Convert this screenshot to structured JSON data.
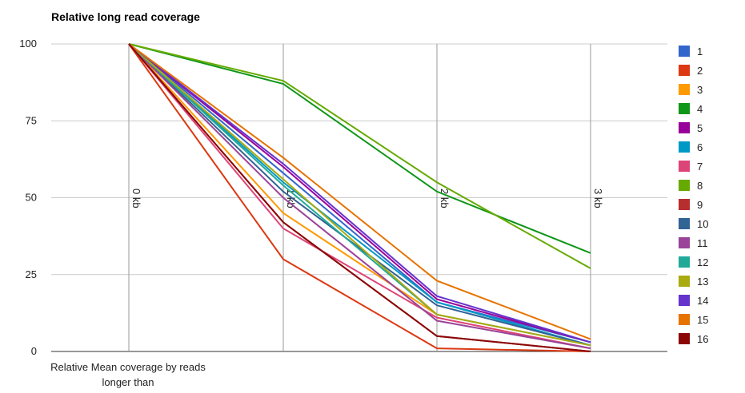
{
  "chart_data": {
    "type": "line",
    "title": "Relative long read coverage",
    "xlabel": "Relative Mean coverage by reads longer than",
    "ylabel": "",
    "categories": [
      "0 kb",
      "1 kb",
      "2 kb",
      "3 kb"
    ],
    "y_ticks": [
      0,
      25,
      50,
      75,
      100
    ],
    "ylim": [
      0,
      100
    ],
    "grid": true,
    "legend": "right",
    "series": [
      {
        "name": "1",
        "color": "#3366cc",
        "values": [
          100,
          58,
          16,
          3
        ]
      },
      {
        "name": "2",
        "color": "#dc3912",
        "values": [
          100,
          30,
          1,
          0
        ]
      },
      {
        "name": "3",
        "color": "#ff9900",
        "values": [
          100,
          45,
          12,
          2
        ]
      },
      {
        "name": "4",
        "color": "#109618",
        "values": [
          100,
          87,
          52,
          32
        ]
      },
      {
        "name": "5",
        "color": "#990099",
        "values": [
          100,
          60,
          17,
          3
        ]
      },
      {
        "name": "6",
        "color": "#0099c6",
        "values": [
          100,
          55,
          16,
          2
        ]
      },
      {
        "name": "7",
        "color": "#dd4477",
        "values": [
          100,
          40,
          11,
          1
        ]
      },
      {
        "name": "8",
        "color": "#66aa00",
        "values": [
          100,
          88,
          55,
          27
        ]
      },
      {
        "name": "9",
        "color": "#b82e2e",
        "values": [
          100,
          42,
          5,
          0
        ]
      },
      {
        "name": "10",
        "color": "#316395",
        "values": [
          100,
          52,
          15,
          2
        ]
      },
      {
        "name": "11",
        "color": "#994499",
        "values": [
          100,
          50,
          10,
          1
        ]
      },
      {
        "name": "12",
        "color": "#22aa99",
        "values": [
          100,
          54,
          12,
          2
        ]
      },
      {
        "name": "13",
        "color": "#aaaa11",
        "values": [
          100,
          56,
          12,
          2
        ]
      },
      {
        "name": "14",
        "color": "#6633cc",
        "values": [
          100,
          61,
          18,
          3
        ]
      },
      {
        "name": "15",
        "color": "#e67300",
        "values": [
          100,
          63,
          23,
          4
        ]
      },
      {
        "name": "16",
        "color": "#8b0707",
        "values": [
          100,
          42,
          5,
          0
        ]
      }
    ]
  }
}
